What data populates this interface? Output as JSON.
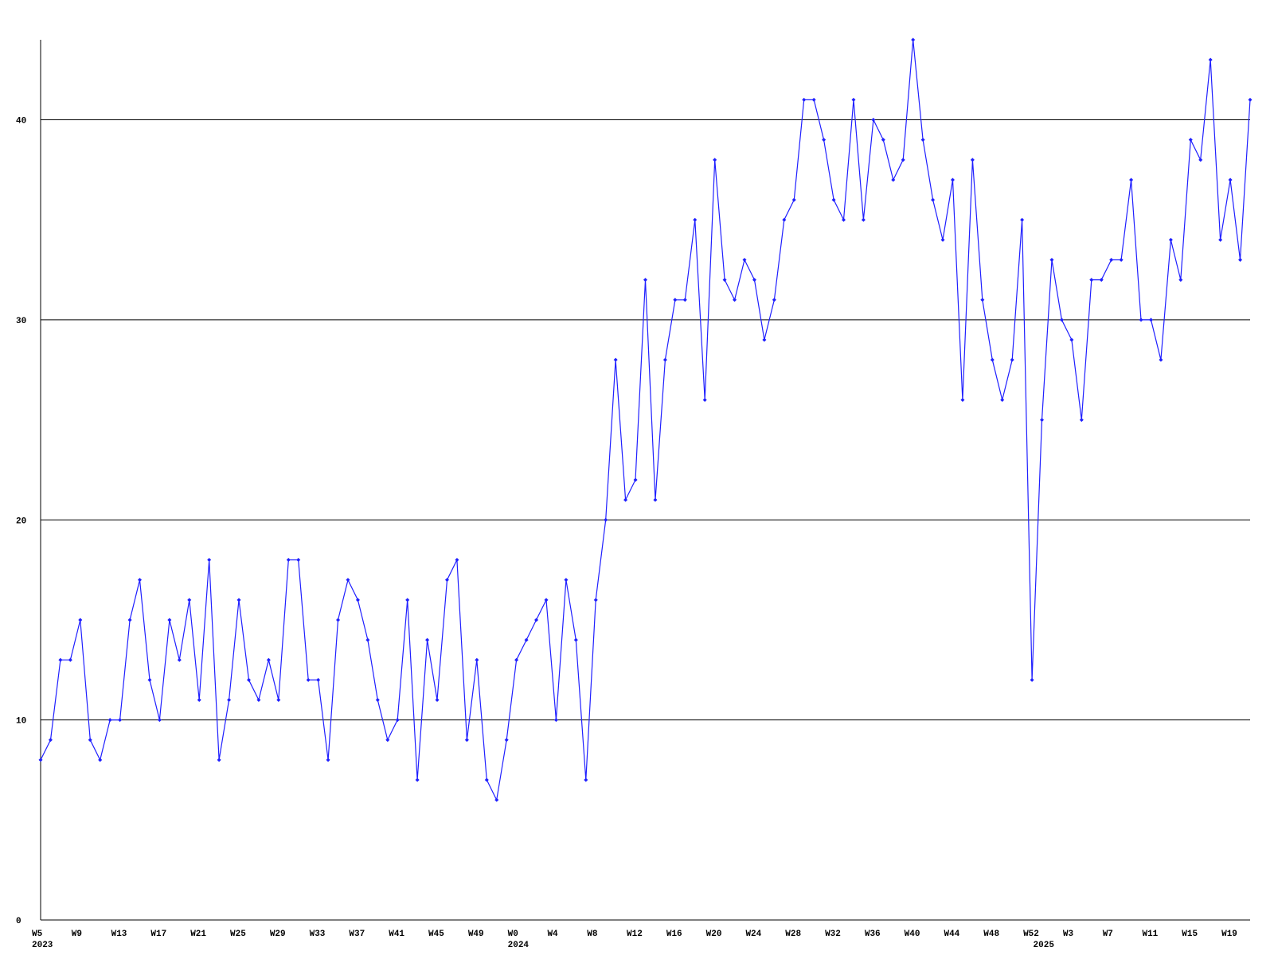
{
  "chart_data": {
    "type": "line",
    "categories": [
      "W5",
      null,
      null,
      null,
      "W9",
      null,
      null,
      null,
      "W13",
      null,
      null,
      null,
      "W17",
      null,
      null,
      null,
      "W21",
      null,
      null,
      null,
      "W25",
      null,
      null,
      null,
      "W29",
      null,
      null,
      null,
      "W33",
      null,
      null,
      null,
      "W37",
      null,
      null,
      null,
      "W41",
      null,
      null,
      null,
      "W45",
      null,
      null,
      null,
      "W49",
      null,
      null,
      null,
      "W0",
      null,
      null,
      null,
      "W4",
      null,
      null,
      null,
      "W8",
      null,
      null,
      null,
      "W12",
      null,
      null,
      null,
      "W16",
      null,
      null,
      null,
      "W20",
      null,
      null,
      null,
      "W24",
      null,
      null,
      null,
      "W28",
      null,
      null,
      null,
      "W32",
      null,
      null,
      null,
      "W36",
      null,
      null,
      null,
      "W40",
      null,
      null,
      null,
      "W44",
      null,
      null,
      null,
      "W48",
      null,
      null,
      null,
      "W52",
      null,
      null,
      null,
      "W3",
      null,
      null,
      null,
      "W7",
      null,
      null,
      null,
      "W11",
      null,
      null,
      null,
      "W15",
      null,
      null,
      null,
      "W19",
      null,
      null
    ],
    "category_years": [
      "2023",
      null,
      null,
      null,
      null,
      null,
      null,
      null,
      null,
      null,
      null,
      null,
      null,
      null,
      null,
      null,
      null,
      null,
      null,
      null,
      null,
      null,
      null,
      null,
      null,
      null,
      null,
      null,
      null,
      null,
      null,
      null,
      null,
      null,
      null,
      null,
      null,
      null,
      null,
      null,
      null,
      null,
      null,
      null,
      null,
      null,
      null,
      null,
      "2024",
      null,
      null,
      null,
      null,
      null,
      null,
      null,
      null,
      null,
      null,
      null,
      null,
      null,
      null,
      null,
      null,
      null,
      null,
      null,
      null,
      null,
      null,
      null,
      null,
      null,
      null,
      null,
      null,
      null,
      null,
      null,
      null,
      null,
      null,
      null,
      null,
      null,
      null,
      null,
      null,
      null,
      null,
      null,
      null,
      null,
      null,
      null,
      null,
      null,
      null,
      null,
      null,
      "2025",
      null,
      null,
      null,
      null,
      null,
      null,
      null,
      null,
      null,
      null,
      null,
      null,
      null,
      null,
      null,
      null,
      null,
      null,
      null,
      null,
      null
    ],
    "series": [
      {
        "color": "#1f1fff",
        "values": [
          8,
          9,
          13,
          13,
          15,
          9,
          8,
          10,
          10,
          15,
          17,
          12,
          10,
          15,
          13,
          16,
          11,
          18,
          8,
          11,
          16,
          12,
          11,
          13,
          11,
          18,
          18,
          12,
          12,
          8,
          15,
          17,
          16,
          14,
          11,
          9,
          10,
          16,
          7,
          14,
          11,
          17,
          18,
          9,
          13,
          7,
          6,
          9,
          13,
          14,
          15,
          16,
          10,
          17,
          14,
          7,
          16,
          20,
          28,
          21,
          22,
          32,
          21,
          28,
          31,
          31,
          35,
          26,
          38,
          32,
          31,
          33,
          32,
          29,
          31,
          35,
          36,
          41,
          41,
          39,
          36,
          35,
          41,
          35,
          40,
          39,
          37,
          38,
          44,
          39,
          36,
          34,
          37,
          26,
          38,
          31,
          28,
          26,
          28,
          35,
          12,
          25,
          33,
          30,
          29,
          25,
          32,
          32,
          33,
          33,
          37,
          30,
          30,
          28,
          34,
          32,
          39,
          38,
          43,
          34,
          37,
          33,
          41
        ]
      }
    ],
    "ylim": [
      0,
      44
    ],
    "yticks": [
      0,
      10,
      20,
      30,
      40
    ],
    "grid": true
  }
}
